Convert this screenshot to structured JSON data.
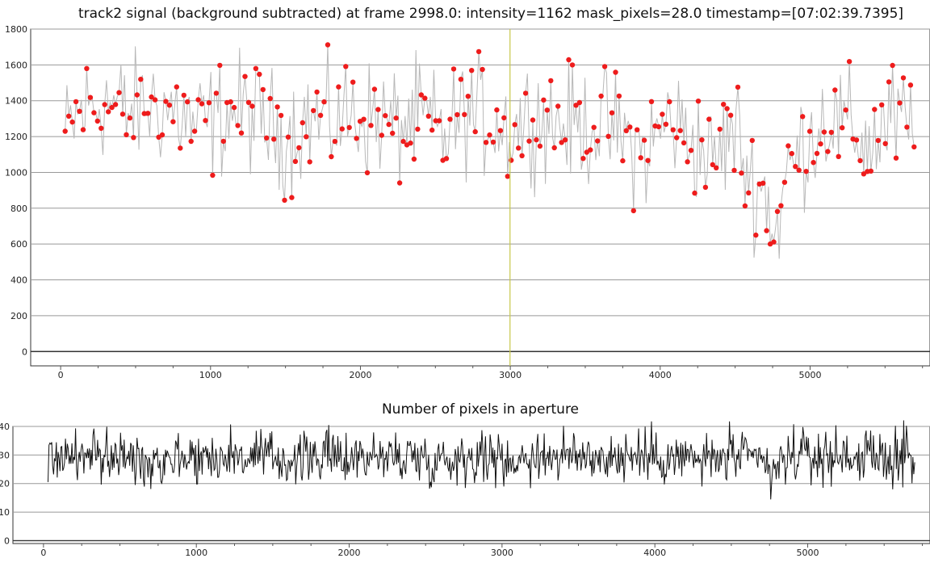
{
  "chart_data": [
    {
      "type": "scatter",
      "title": "track2 signal (background subtracted) at frame 2998.0: intensity=1162 mask_pixels=28.0 timestamp=[07:02:39.7395]",
      "xlabel": "",
      "ylabel": "",
      "xlim": [
        -200,
        5800
      ],
      "ylim": [
        -80,
        1800
      ],
      "xticks": [
        0,
        1000,
        2000,
        3000,
        4000,
        5000
      ],
      "yticks": [
        0,
        200,
        400,
        600,
        800,
        1000,
        1200,
        1400,
        1600,
        1800
      ],
      "grid": true,
      "cursor_x": 2998,
      "marker_color": "#ee1c1c",
      "line_color": "#b8b8b8",
      "cursor_color": "#c8c84a",
      "series": [
        {
          "x": [
            30,
            150,
            300,
            450,
            600,
            750,
            900,
            1050,
            1200,
            1350,
            1500,
            1650,
            1800,
            1950,
            2100,
            2250,
            2400,
            2550,
            2700,
            2850,
            3000,
            3150,
            3300,
            3450,
            3600,
            3750,
            3900,
            4050,
            4200,
            4350,
            4500,
            4600,
            4700,
            4770,
            4850,
            4950,
            5100,
            5250,
            5400,
            5550,
            5650,
            5700
          ],
          "y": [
            1200,
            1350,
            1400,
            1330,
            1380,
            1350,
            1250,
            1300,
            1350,
            1280,
            1200,
            1300,
            1280,
            1320,
            1300,
            1250,
            1310,
            1200,
            1330,
            1300,
            1240,
            1320,
            1280,
            1250,
            1280,
            1200,
            1100,
            1300,
            1200,
            1050,
            1250,
            950,
            900,
            650,
            1000,
            1150,
            1300,
            1250,
            1150,
            1300,
            1250,
            1200
          ]
        }
      ]
    },
    {
      "type": "line",
      "title": "Number of pixels in aperture",
      "xlabel": "",
      "ylabel": "",
      "xlim": [
        -200,
        5800
      ],
      "ylim": [
        -1,
        40
      ],
      "xticks": [
        0,
        1000,
        2000,
        3000,
        4000,
        5000
      ],
      "yticks": [
        0,
        10,
        20,
        30,
        40
      ],
      "grid": true,
      "cursor_x": 2998,
      "line_color": "#111111",
      "series": [
        {
          "x": [
            30,
            150,
            300,
            450,
            600,
            750,
            900,
            1050,
            1200,
            1350,
            1500,
            1650,
            1800,
            1950,
            2100,
            2250,
            2400,
            2550,
            2700,
            2850,
            3000,
            3150,
            3300,
            3450,
            3600,
            3750,
            3900,
            4050,
            4200,
            4350,
            4500,
            4600,
            4700,
            4770,
            4850,
            4950,
            5100,
            5250,
            5400,
            5550,
            5650,
            5700
          ],
          "y": [
            29,
            30,
            29,
            30,
            28,
            29,
            30,
            29,
            30,
            29,
            29,
            28,
            30,
            29,
            30,
            29,
            30,
            28,
            29,
            30,
            28,
            29,
            30,
            29,
            30,
            29,
            30,
            29,
            29,
            28,
            30,
            28,
            29,
            22,
            29,
            30,
            29,
            30,
            29,
            29,
            30,
            28
          ]
        }
      ]
    }
  ]
}
